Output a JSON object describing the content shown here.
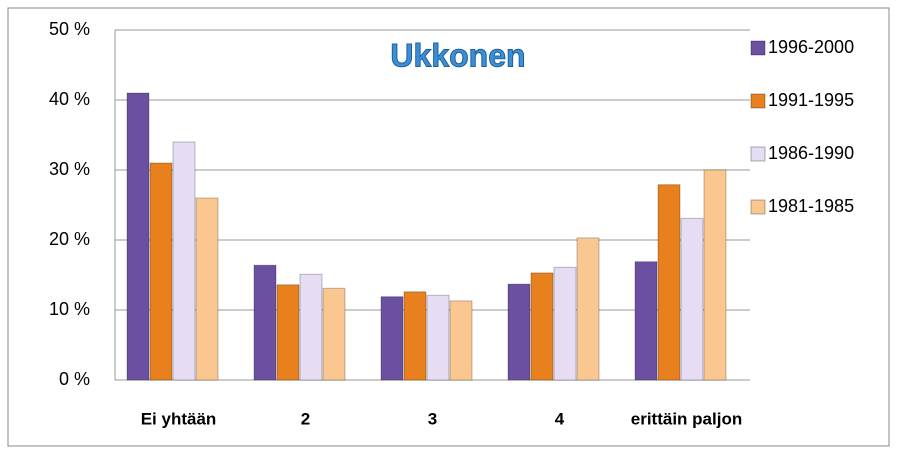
{
  "chart_data": {
    "type": "bar",
    "title": "Ukkonen",
    "categories": [
      "Ei yhtään",
      "2",
      "3",
      "4",
      "erittäin paljon"
    ],
    "series": [
      {
        "name": "1996-2000",
        "color": "#6b4fa0",
        "values": [
          41,
          16.4,
          11.9,
          13.7,
          16.9
        ]
      },
      {
        "name": "1991-1995",
        "color": "#e8801e",
        "values": [
          31,
          13.6,
          12.6,
          15.3,
          27.9
        ]
      },
      {
        "name": "1986-1990",
        "color": "#e6dcf4",
        "values": [
          34,
          15.1,
          12.1,
          16.1,
          23.1
        ]
      },
      {
        "name": "1981-1985",
        "color": "#fbc790",
        "values": [
          26,
          13.1,
          11.3,
          20.3,
          30
        ]
      }
    ],
    "ylim": [
      0,
      50
    ],
    "yticks": [
      {
        "value": 0,
        "label": "0 %"
      },
      {
        "value": 10,
        "label": "10 %"
      },
      {
        "value": 20,
        "label": "20 %"
      },
      {
        "value": 30,
        "label": "30 %"
      },
      {
        "value": 40,
        "label": "40 %"
      },
      {
        "value": 50,
        "label": "50 %"
      }
    ],
    "grid": true,
    "legend": "right"
  }
}
